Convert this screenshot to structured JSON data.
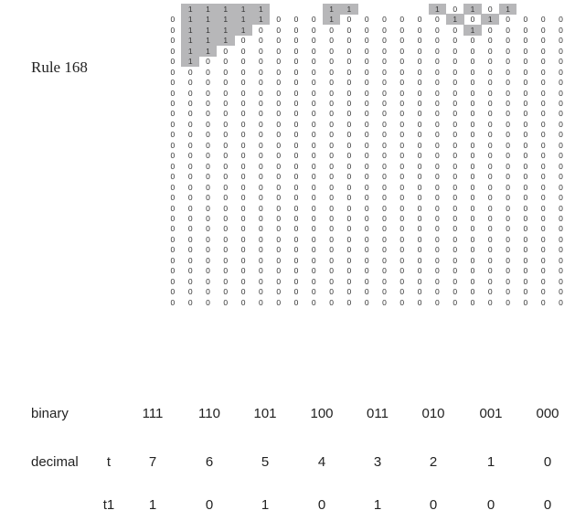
{
  "title": "Rule 168",
  "grid": {
    "rows": [
      [
        null,
        1,
        1,
        1,
        1,
        1,
        null,
        null,
        null,
        1,
        1,
        null,
        null,
        null,
        null,
        1,
        0,
        1,
        0,
        1,
        null,
        null,
        null
      ],
      [
        0,
        1,
        1,
        1,
        1,
        1,
        0,
        0,
        0,
        1,
        0,
        0,
        0,
        0,
        0,
        0,
        1,
        0,
        1,
        0,
        0,
        0,
        0
      ],
      [
        0,
        1,
        1,
        1,
        1,
        0,
        0,
        0,
        0,
        0,
        0,
        0,
        0,
        0,
        0,
        0,
        0,
        1,
        0,
        0,
        0,
        0,
        0
      ],
      [
        0,
        1,
        1,
        1,
        0,
        0,
        0,
        0,
        0,
        0,
        0,
        0,
        0,
        0,
        0,
        0,
        0,
        0,
        0,
        0,
        0,
        0,
        0
      ],
      [
        0,
        1,
        1,
        0,
        0,
        0,
        0,
        0,
        0,
        0,
        0,
        0,
        0,
        0,
        0,
        0,
        0,
        0,
        0,
        0,
        0,
        0,
        0
      ],
      [
        0,
        1,
        0,
        0,
        0,
        0,
        0,
        0,
        0,
        0,
        0,
        0,
        0,
        0,
        0,
        0,
        0,
        0,
        0,
        0,
        0,
        0,
        0
      ],
      [
        0,
        0,
        0,
        0,
        0,
        0,
        0,
        0,
        0,
        0,
        0,
        0,
        0,
        0,
        0,
        0,
        0,
        0,
        0,
        0,
        0,
        0,
        0
      ],
      [
        0,
        0,
        0,
        0,
        0,
        0,
        0,
        0,
        0,
        0,
        0,
        0,
        0,
        0,
        0,
        0,
        0,
        0,
        0,
        0,
        0,
        0,
        0
      ],
      [
        0,
        0,
        0,
        0,
        0,
        0,
        0,
        0,
        0,
        0,
        0,
        0,
        0,
        0,
        0,
        0,
        0,
        0,
        0,
        0,
        0,
        0,
        0
      ],
      [
        0,
        0,
        0,
        0,
        0,
        0,
        0,
        0,
        0,
        0,
        0,
        0,
        0,
        0,
        0,
        0,
        0,
        0,
        0,
        0,
        0,
        0,
        0
      ],
      [
        0,
        0,
        0,
        0,
        0,
        0,
        0,
        0,
        0,
        0,
        0,
        0,
        0,
        0,
        0,
        0,
        0,
        0,
        0,
        0,
        0,
        0,
        0
      ],
      [
        0,
        0,
        0,
        0,
        0,
        0,
        0,
        0,
        0,
        0,
        0,
        0,
        0,
        0,
        0,
        0,
        0,
        0,
        0,
        0,
        0,
        0,
        0
      ],
      [
        0,
        0,
        0,
        0,
        0,
        0,
        0,
        0,
        0,
        0,
        0,
        0,
        0,
        0,
        0,
        0,
        0,
        0,
        0,
        0,
        0,
        0,
        0
      ],
      [
        0,
        0,
        0,
        0,
        0,
        0,
        0,
        0,
        0,
        0,
        0,
        0,
        0,
        0,
        0,
        0,
        0,
        0,
        0,
        0,
        0,
        0,
        0
      ],
      [
        0,
        0,
        0,
        0,
        0,
        0,
        0,
        0,
        0,
        0,
        0,
        0,
        0,
        0,
        0,
        0,
        0,
        0,
        0,
        0,
        0,
        0,
        0
      ],
      [
        0,
        0,
        0,
        0,
        0,
        0,
        0,
        0,
        0,
        0,
        0,
        0,
        0,
        0,
        0,
        0,
        0,
        0,
        0,
        0,
        0,
        0,
        0
      ],
      [
        0,
        0,
        0,
        0,
        0,
        0,
        0,
        0,
        0,
        0,
        0,
        0,
        0,
        0,
        0,
        0,
        0,
        0,
        0,
        0,
        0,
        0,
        0
      ],
      [
        0,
        0,
        0,
        0,
        0,
        0,
        0,
        0,
        0,
        0,
        0,
        0,
        0,
        0,
        0,
        0,
        0,
        0,
        0,
        0,
        0,
        0,
        0
      ],
      [
        0,
        0,
        0,
        0,
        0,
        0,
        0,
        0,
        0,
        0,
        0,
        0,
        0,
        0,
        0,
        0,
        0,
        0,
        0,
        0,
        0,
        0,
        0
      ],
      [
        0,
        0,
        0,
        0,
        0,
        0,
        0,
        0,
        0,
        0,
        0,
        0,
        0,
        0,
        0,
        0,
        0,
        0,
        0,
        0,
        0,
        0,
        0
      ],
      [
        0,
        0,
        0,
        0,
        0,
        0,
        0,
        0,
        0,
        0,
        0,
        0,
        0,
        0,
        0,
        0,
        0,
        0,
        0,
        0,
        0,
        0,
        0
      ],
      [
        0,
        0,
        0,
        0,
        0,
        0,
        0,
        0,
        0,
        0,
        0,
        0,
        0,
        0,
        0,
        0,
        0,
        0,
        0,
        0,
        0,
        0,
        0
      ],
      [
        0,
        0,
        0,
        0,
        0,
        0,
        0,
        0,
        0,
        0,
        0,
        0,
        0,
        0,
        0,
        0,
        0,
        0,
        0,
        0,
        0,
        0,
        0
      ],
      [
        0,
        0,
        0,
        0,
        0,
        0,
        0,
        0,
        0,
        0,
        0,
        0,
        0,
        0,
        0,
        0,
        0,
        0,
        0,
        0,
        0,
        0,
        0
      ],
      [
        0,
        0,
        0,
        0,
        0,
        0,
        0,
        0,
        0,
        0,
        0,
        0,
        0,
        0,
        0,
        0,
        0,
        0,
        0,
        0,
        0,
        0,
        0
      ],
      [
        0,
        0,
        0,
        0,
        0,
        0,
        0,
        0,
        0,
        0,
        0,
        0,
        0,
        0,
        0,
        0,
        0,
        0,
        0,
        0,
        0,
        0,
        0
      ],
      [
        0,
        0,
        0,
        0,
        0,
        0,
        0,
        0,
        0,
        0,
        0,
        0,
        0,
        0,
        0,
        0,
        0,
        0,
        0,
        0,
        0,
        0,
        0
      ],
      [
        0,
        0,
        0,
        0,
        0,
        0,
        0,
        0,
        0,
        0,
        0,
        0,
        0,
        0,
        0,
        0,
        0,
        0,
        0,
        0,
        0,
        0,
        0
      ],
      [
        0,
        0,
        0,
        0,
        0,
        0,
        0,
        0,
        0,
        0,
        0,
        0,
        0,
        0,
        0,
        0,
        0,
        0,
        0,
        0,
        0,
        0,
        0
      ]
    ],
    "on_color": "#b7b7b9"
  },
  "rule_table": {
    "binary_label": "binary",
    "decimal_label": "decimal",
    "t_label": "t",
    "t1_label": "t1",
    "binary": [
      "111",
      "110",
      "101",
      "100",
      "011",
      "010",
      "001",
      "000"
    ],
    "t": [
      "7",
      "6",
      "5",
      "4",
      "3",
      "2",
      "1",
      "0"
    ],
    "t1": [
      "1",
      "0",
      "1",
      "0",
      "1",
      "0",
      "0",
      "0"
    ]
  }
}
